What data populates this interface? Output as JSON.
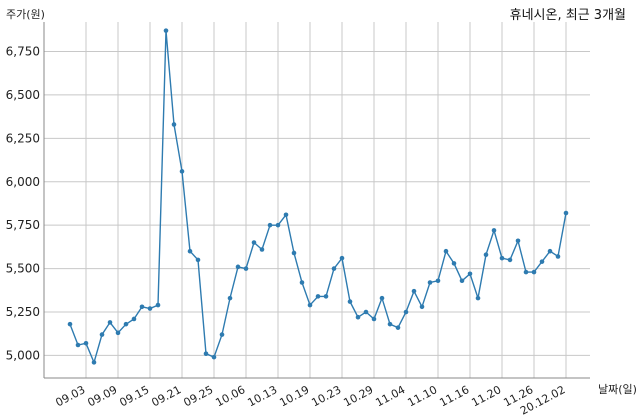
{
  "chart_data": {
    "type": "line",
    "title": "휴네시온, 최근 3개월",
    "ylabel": "주가(원)",
    "xlabel": "날짜(일)",
    "ylim": [
      4870,
      6920
    ],
    "yticks": [
      5000,
      5250,
      5500,
      5750,
      6000,
      6250,
      6500,
      6750
    ],
    "ytick_labels": [
      "5,000",
      "5,250",
      "5,500",
      "5,750",
      "6,000",
      "6,250",
      "6,500",
      "6,750"
    ],
    "xtick_labels": [
      "09.03",
      "09.09",
      "09.15",
      "09.21",
      "09.25",
      "10.06",
      "10.13",
      "10.19",
      "10.23",
      "10.29",
      "11.04",
      "11.10",
      "11.16",
      "11.20",
      "11.26",
      "20.12.02"
    ],
    "xtick_index": [
      2,
      6,
      10,
      14,
      18,
      22,
      26,
      30,
      34,
      38,
      42,
      46,
      50,
      54,
      58,
      62
    ],
    "grid": true,
    "line_color": "#2e7bb0",
    "series": [
      {
        "values": [
          5180,
          5060,
          5070,
          4960,
          5120,
          5190,
          5130,
          5180,
          5210,
          5280,
          5270,
          5290,
          6870,
          6330,
          6060,
          5600,
          5550,
          5010,
          4990,
          5120,
          5330,
          5510,
          5500,
          5650,
          5610,
          5750,
          5750,
          5810,
          5590,
          5420,
          5290,
          5340,
          5340,
          5500,
          5560,
          5310,
          5220,
          5250,
          5210,
          5330,
          5180,
          5160,
          5250,
          5370,
          5280,
          5420,
          5430,
          5600,
          5530,
          5430,
          5470,
          5330,
          5580,
          5720,
          5560,
          5550,
          5660,
          5480,
          5480,
          5540,
          5600,
          5570,
          5820
        ]
      }
    ]
  }
}
